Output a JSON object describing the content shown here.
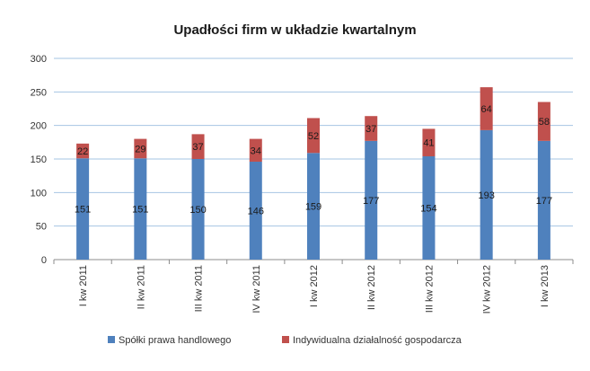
{
  "chart_data": {
    "type": "bar",
    "stacked": true,
    "title": "Upadłości firm w układzie kwartalnym",
    "categories": [
      "I kw 2011",
      "II kw 2011",
      "III kw 2011",
      "IV kw 2011",
      "I kw 2012",
      "II kw 2012",
      "III kw 2012",
      "IV kw 2012",
      "I kw 2013"
    ],
    "series": [
      {
        "name": "Spółki prawa handlowego",
        "color": "#4f81bd",
        "values": [
          151,
          151,
          150,
          146,
          159,
          177,
          154,
          193,
          177
        ]
      },
      {
        "name": "Indywidualna działalność gospodarcza",
        "color": "#c0504d",
        "values": [
          22,
          29,
          37,
          34,
          52,
          37,
          41,
          64,
          58
        ]
      }
    ],
    "ylim": [
      0,
      300
    ],
    "yticks": [
      0,
      50,
      100,
      150,
      200,
      250,
      300
    ],
    "grid": true,
    "legend": "bottom"
  }
}
